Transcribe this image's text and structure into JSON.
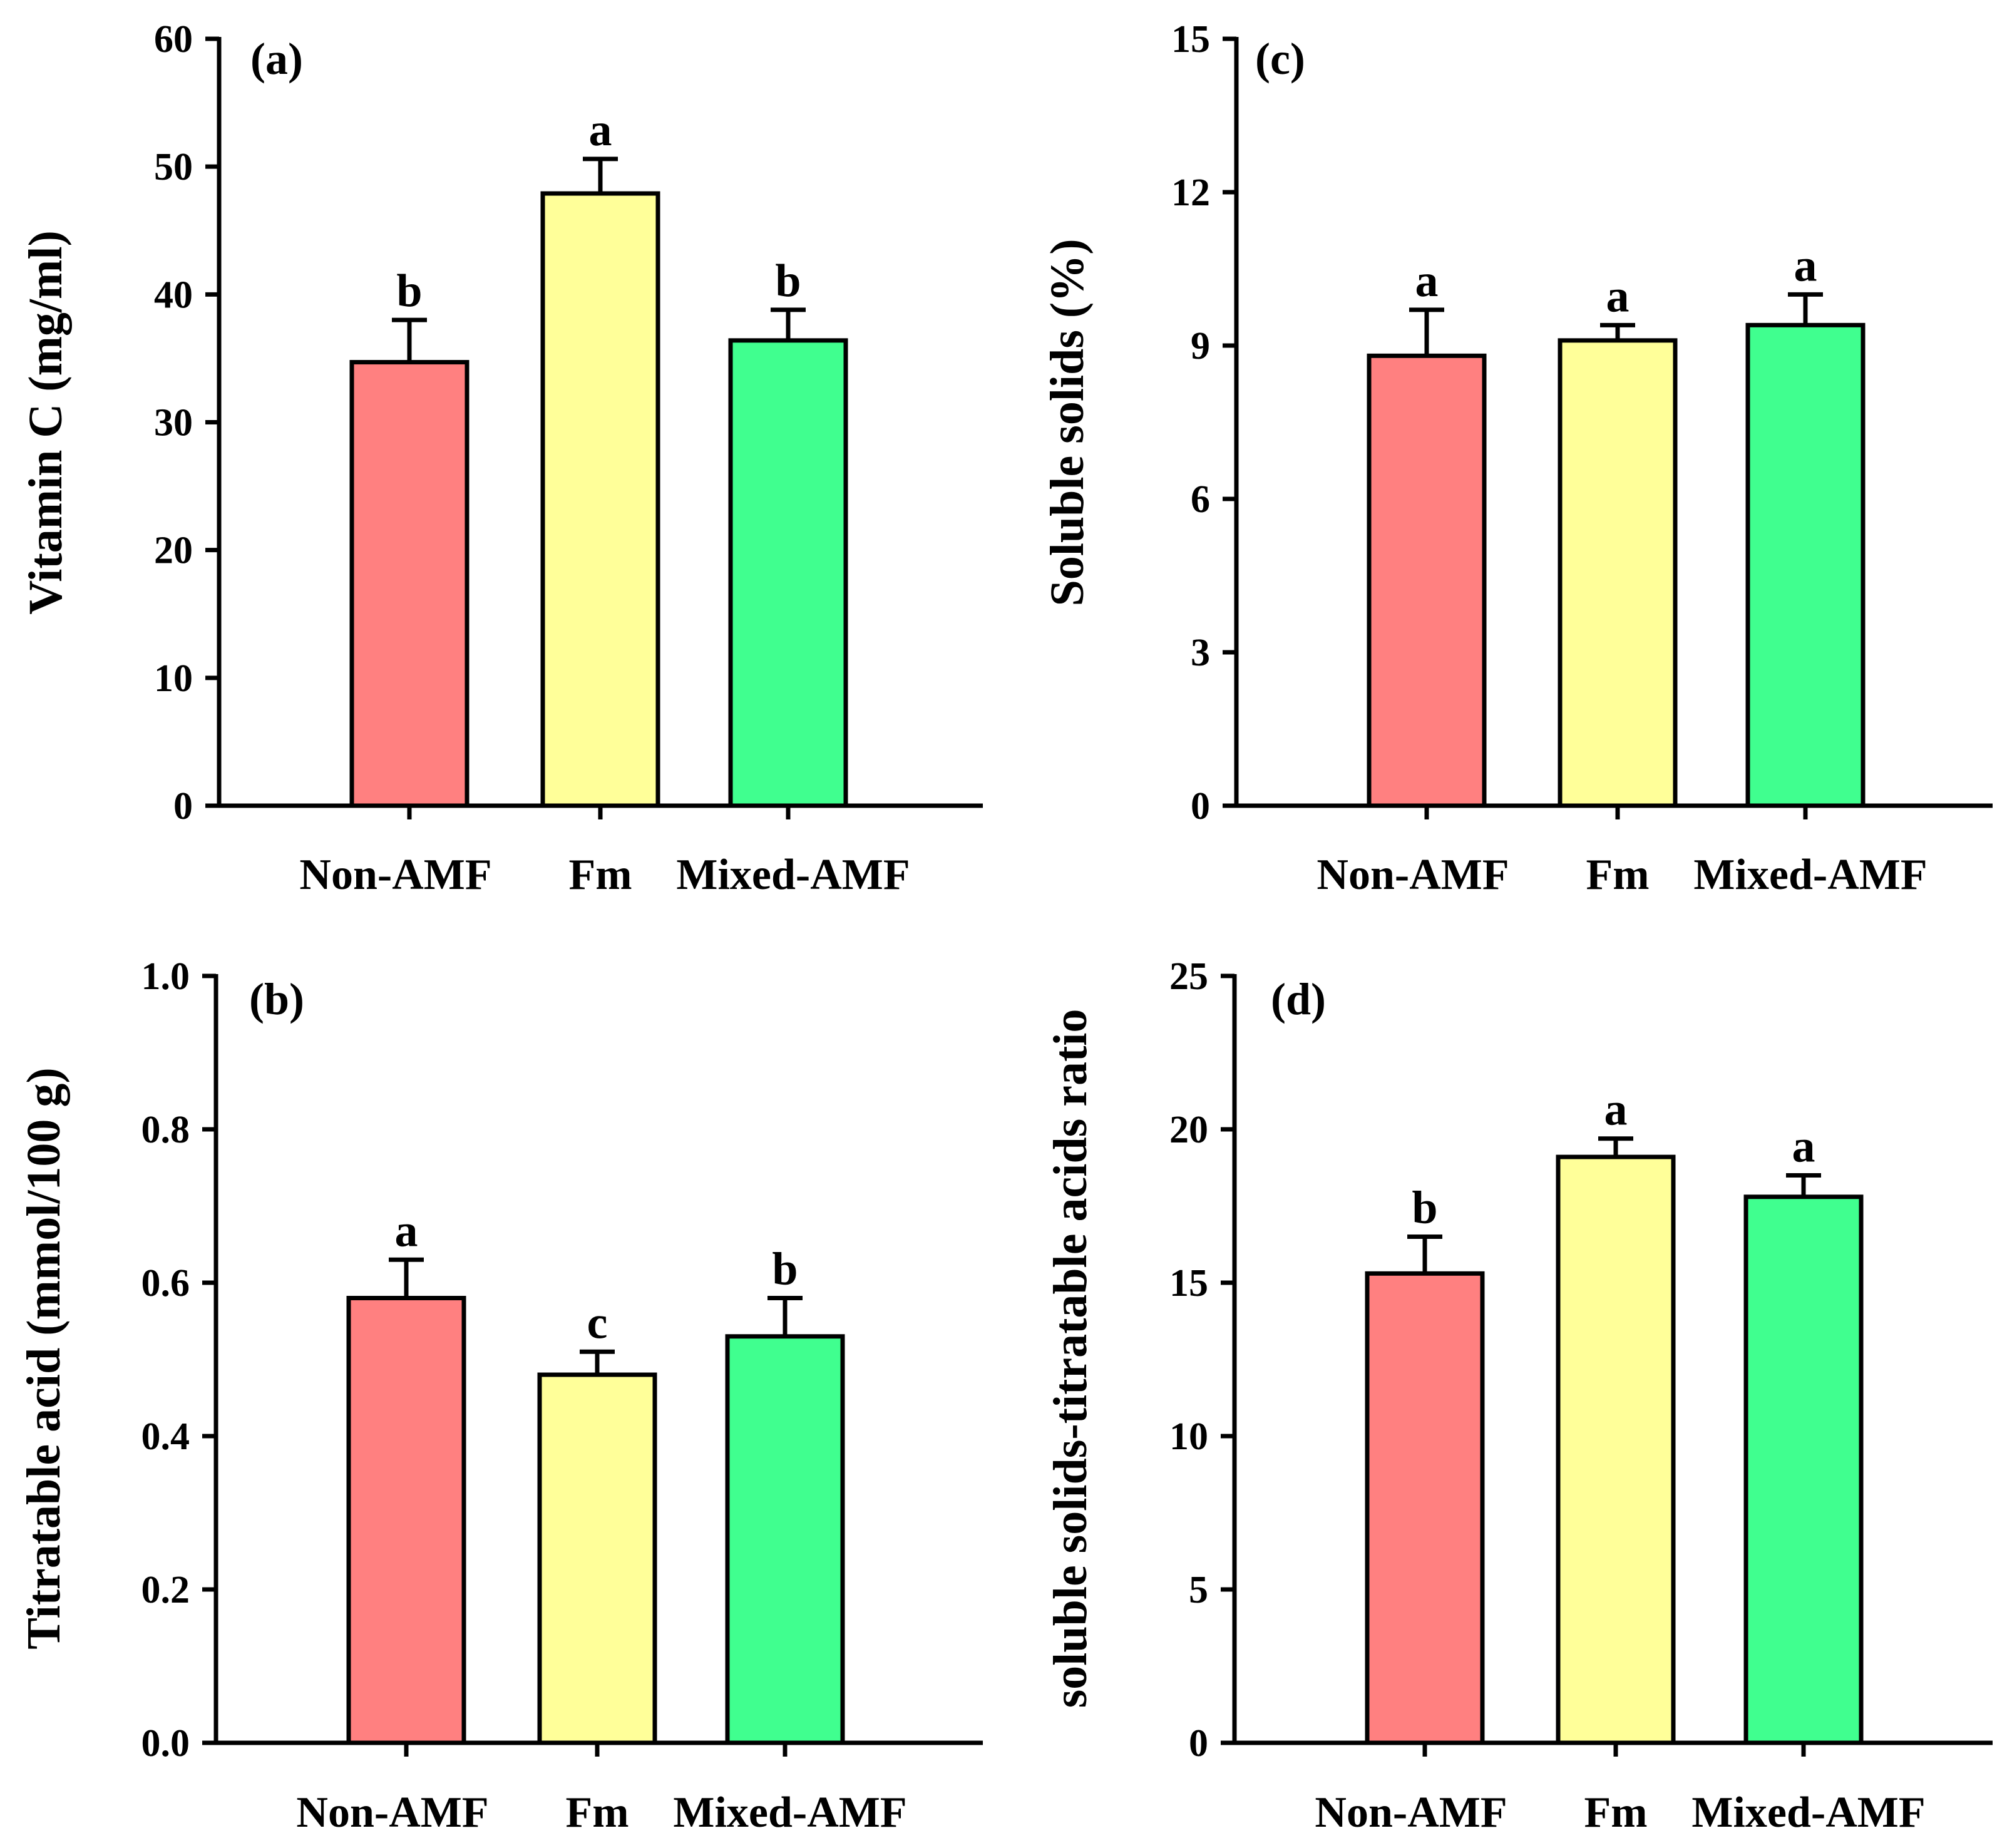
{
  "figure": {
    "colors": {
      "Non-AMF": "#ff8080",
      "Fm": "#ffff99",
      "Mixed-AMF": "#40ff8f",
      "axis": "#000000"
    }
  },
  "chart_data": [
    {
      "id": "a",
      "type": "bar",
      "panel_label": "(a)",
      "title": "",
      "xlabel": "",
      "ylabel": "Vitamin C (mg/ml)",
      "categories": [
        "Non-AMF",
        "Fm",
        "Mixed-AMF"
      ],
      "values": [
        34.7,
        47.9,
        36.4
      ],
      "errors": [
        3.3,
        2.7,
        2.4
      ],
      "letters": [
        "b",
        "a",
        "b"
      ],
      "ylim": [
        0,
        60
      ],
      "yticks": [
        0,
        10,
        20,
        30,
        40,
        50,
        60
      ],
      "ytick_labels": [
        "0",
        "10",
        "20",
        "30",
        "40",
        "50",
        "60"
      ],
      "grid": false,
      "legend": "none"
    },
    {
      "id": "c",
      "type": "bar",
      "panel_label": "(c)",
      "title": "",
      "xlabel": "",
      "ylabel": "Soluble solids (%)",
      "categories": [
        "Non-AMF",
        "Fm",
        "Mixed-AMF"
      ],
      "values": [
        8.8,
        9.1,
        9.4
      ],
      "errors": [
        0.9,
        0.3,
        0.6
      ],
      "letters": [
        "a",
        "a",
        "a"
      ],
      "ylim": [
        0,
        15
      ],
      "yticks": [
        0,
        3,
        6,
        9,
        12,
        15
      ],
      "ytick_labels": [
        "0",
        "3",
        "6",
        "9",
        "12",
        "15"
      ],
      "grid": false,
      "legend": "none"
    },
    {
      "id": "b",
      "type": "bar",
      "panel_label": "(b)",
      "title": "",
      "xlabel": "",
      "ylabel": "Titratable acid (mmol/100 g)",
      "categories": [
        "Non-AMF",
        "Fm",
        "Mixed-AMF"
      ],
      "values": [
        0.58,
        0.48,
        0.53
      ],
      "errors": [
        0.05,
        0.03,
        0.05
      ],
      "letters": [
        "a",
        "c",
        "b"
      ],
      "ylim": [
        0,
        1.0
      ],
      "yticks": [
        0,
        0.2,
        0.4,
        0.6,
        0.8,
        1.0
      ],
      "ytick_labels": [
        "0.0",
        "0.2",
        "0.4",
        "0.6",
        "0.8",
        "1.0"
      ],
      "grid": false,
      "legend": "none"
    },
    {
      "id": "d",
      "type": "bar",
      "panel_label": "(d)",
      "title": "",
      "xlabel": "",
      "ylabel": "soluble solids-titratable acids ratio",
      "categories": [
        "Non-AMF",
        "Fm",
        "Mixed-AMF"
      ],
      "values": [
        15.3,
        19.1,
        17.8
      ],
      "errors": [
        1.2,
        0.6,
        0.7
      ],
      "letters": [
        "b",
        "a",
        "a"
      ],
      "ylim": [
        0,
        25
      ],
      "yticks": [
        0,
        5,
        10,
        15,
        20,
        25
      ],
      "ytick_labels": [
        "0",
        "5",
        "10",
        "15",
        "20",
        "25"
      ],
      "grid": false,
      "legend": "none"
    }
  ]
}
